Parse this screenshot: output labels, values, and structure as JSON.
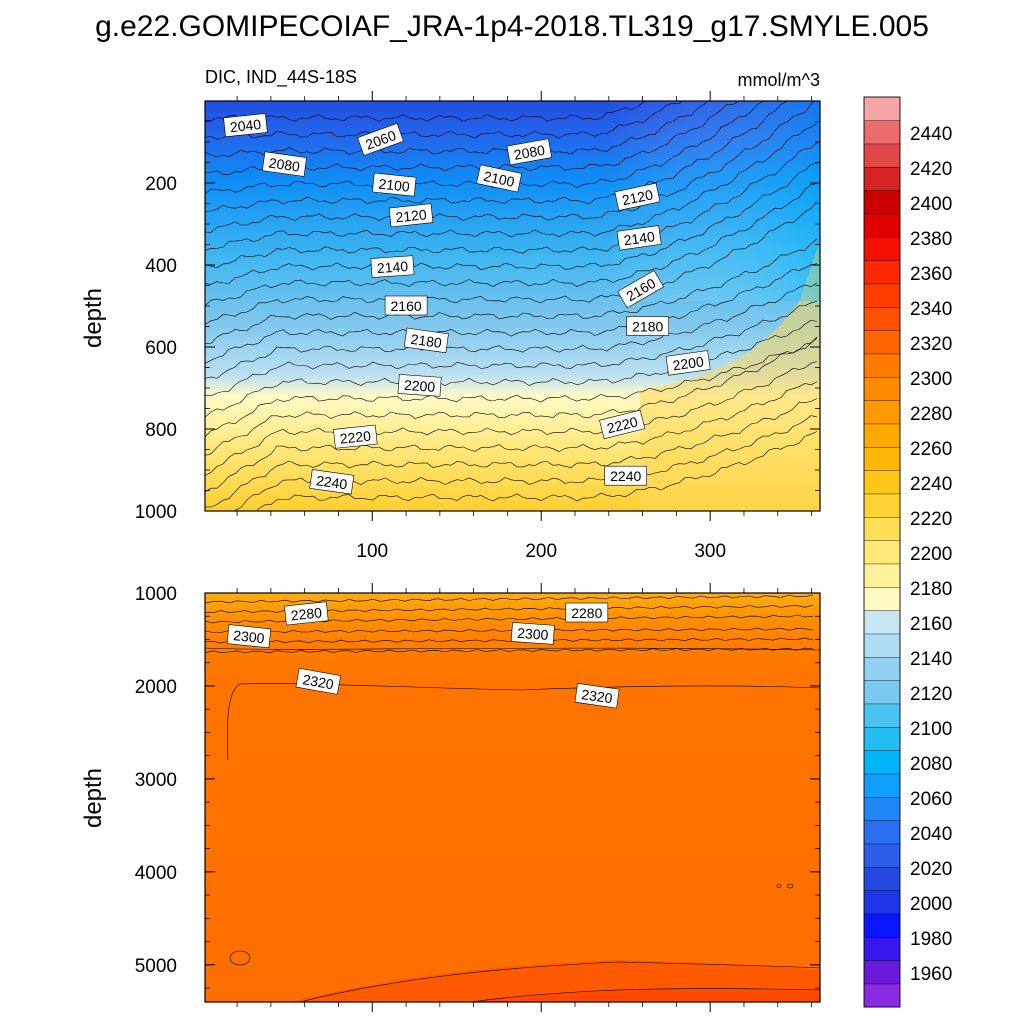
{
  "title": "g.e22.GOMIPECOIAF_JRA-1p4-2018.TL319_g17.SMYLE.005",
  "left_string": "DIC, IND_44S-18S",
  "right_string": "mmol/m^3",
  "chart_data": [
    {
      "type": "contour",
      "name": "upper-panel",
      "xlim": [
        1,
        365
      ],
      "ylim": [
        0,
        1000
      ],
      "y_reversed": true,
      "xlabel": "",
      "ylabel": "depth",
      "xticks": [
        "100",
        "200",
        "300"
      ],
      "yticks": [
        "200",
        "400",
        "600",
        "800",
        "1000"
      ],
      "surface_range": [
        2030,
        2200
      ],
      "contour_labels": [
        {
          "text": "2040",
          "x": 25,
          "y": 60
        },
        {
          "text": "2060",
          "x": 105,
          "y": 95
        },
        {
          "text": "2080",
          "x": 48,
          "y": 155
        },
        {
          "text": "2080",
          "x": 193,
          "y": 125
        },
        {
          "text": "2100",
          "x": 113,
          "y": 205
        },
        {
          "text": "2100",
          "x": 175,
          "y": 190
        },
        {
          "text": "2120",
          "x": 123,
          "y": 280
        },
        {
          "text": "2120",
          "x": 257,
          "y": 235
        },
        {
          "text": "2140",
          "x": 112,
          "y": 405
        },
        {
          "text": "2140",
          "x": 258,
          "y": 335
        },
        {
          "text": "2160",
          "x": 120,
          "y": 500
        },
        {
          "text": "2160",
          "x": 259,
          "y": 460
        },
        {
          "text": "2180",
          "x": 132,
          "y": 585
        },
        {
          "text": "2180",
          "x": 263,
          "y": 550
        },
        {
          "text": "2200",
          "x": 128,
          "y": 695
        },
        {
          "text": "2200",
          "x": 287,
          "y": 640
        },
        {
          "text": "2220",
          "x": 90,
          "y": 820
        },
        {
          "text": "2220",
          "x": 248,
          "y": 790
        },
        {
          "text": "2240",
          "x": 76,
          "y": 930
        },
        {
          "text": "2240",
          "x": 250,
          "y": 915
        }
      ]
    },
    {
      "type": "contour",
      "name": "lower-panel",
      "xlim": [
        1,
        365
      ],
      "ylim": [
        1000,
        5400
      ],
      "y_reversed": true,
      "xlabel": "",
      "ylabel": "depth",
      "yticks": [
        "1000",
        "2000",
        "3000",
        "4000",
        "5000"
      ],
      "contour_labels": [
        {
          "text": "2280",
          "x": 61,
          "y": 1225
        },
        {
          "text": "2280",
          "x": 227,
          "y": 1215
        },
        {
          "text": "2300",
          "x": 27,
          "y": 1470
        },
        {
          "text": "2300",
          "x": 195,
          "y": 1440
        },
        {
          "text": "2320",
          "x": 68,
          "y": 1955
        },
        {
          "text": "2320",
          "x": 233,
          "y": 2110
        }
      ]
    }
  ],
  "colorbar": {
    "levels": [
      "1960",
      "1980",
      "2000",
      "2020",
      "2040",
      "2060",
      "2080",
      "2100",
      "2120",
      "2140",
      "2160",
      "2180",
      "2200",
      "2220",
      "2240",
      "2260",
      "2280",
      "2300",
      "2320",
      "2340",
      "2360",
      "2380",
      "2400",
      "2420",
      "2440"
    ],
    "colors": [
      "#8a2be2",
      "#6a1ad8",
      "#3818f0",
      "#0a16ff",
      "#1c36e8",
      "#2448e0",
      "#2c5ce8",
      "#2a6ff0",
      "#1f86f8",
      "#0fa0ff",
      "#00b4f8",
      "#22bef2",
      "#4ac3f2",
      "#79c9f0",
      "#92d1f2",
      "#aedcf2",
      "#c8e6f4",
      "#fdfbc2",
      "#fff29a",
      "#ffe978",
      "#ffdf55",
      "#ffd333",
      "#ffc61a",
      "#ffb808",
      "#ffaa00",
      "#ff9b00",
      "#ff8c00",
      "#ff7a00",
      "#ff6600",
      "#ff5200",
      "#ff3e00",
      "#ff2800",
      "#f41000",
      "#e00000",
      "#cc0000",
      "#d42424",
      "#e04848",
      "#ea6c6c",
      "#f5a5a5"
    ]
  }
}
